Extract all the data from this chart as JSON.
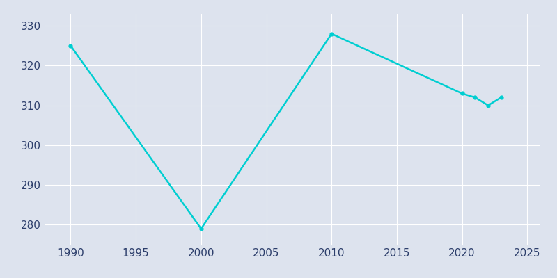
{
  "years": [
    1990,
    2000,
    2010,
    2020,
    2021,
    2022,
    2023
  ],
  "population": [
    325,
    279,
    328,
    313,
    312,
    310,
    312
  ],
  "line_color": "#00CED1",
  "marker_color": "#00CED1",
  "bg_color": "#dde3ee",
  "grid_color": "#ffffff",
  "xlim": [
    1988,
    2026
  ],
  "ylim": [
    275,
    333
  ],
  "xticks": [
    1990,
    1995,
    2000,
    2005,
    2010,
    2015,
    2020,
    2025
  ],
  "yticks": [
    280,
    290,
    300,
    310,
    320,
    330
  ],
  "tick_color": "#2c3e6b",
  "tick_fontsize": 11
}
